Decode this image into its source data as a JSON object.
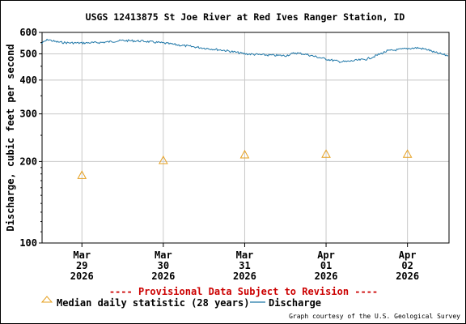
{
  "chart_data": {
    "type": "line",
    "title": "USGS 12413875 St Joe River at Red Ives Ranger Station, ID",
    "ylabel": "Discharge, cubic feet per second",
    "y_scale": "log",
    "ylim": [
      100,
      600
    ],
    "y_ticks": [
      100,
      200,
      300,
      400,
      500,
      600
    ],
    "x_ticks": [
      {
        "date": "2026-03-29",
        "label": [
          "Mar",
          "29",
          "2026"
        ]
      },
      {
        "date": "2026-03-30",
        "label": [
          "Mar",
          "30",
          "2026"
        ]
      },
      {
        "date": "2026-03-31",
        "label": [
          "Mar",
          "31",
          "2026"
        ]
      },
      {
        "date": "2026-04-01",
        "label": [
          "Apr",
          "01",
          "2026"
        ]
      },
      {
        "date": "2026-04-02",
        "label": [
          "Apr",
          "02",
          "2026"
        ]
      }
    ],
    "series": [
      {
        "name": "Discharge",
        "color": "#1f77a8",
        "points": [
          {
            "t": "2026-03-28T12:00",
            "y": 545
          },
          {
            "t": "2026-03-28T14:00",
            "y": 565
          },
          {
            "t": "2026-03-28T16:00",
            "y": 555
          },
          {
            "t": "2026-03-28T18:00",
            "y": 551
          },
          {
            "t": "2026-03-28T20:00",
            "y": 549
          },
          {
            "t": "2026-03-29T00:00",
            "y": 548
          },
          {
            "t": "2026-03-29T06:00",
            "y": 551
          },
          {
            "t": "2026-03-29T12:00",
            "y": 560
          },
          {
            "t": "2026-03-29T18:00",
            "y": 557
          },
          {
            "t": "2026-03-30T00:00",
            "y": 548
          },
          {
            "t": "2026-03-30T06:00",
            "y": 536
          },
          {
            "t": "2026-03-30T12:00",
            "y": 525
          },
          {
            "t": "2026-03-30T18:00",
            "y": 515
          },
          {
            "t": "2026-03-31T00:00",
            "y": 500
          },
          {
            "t": "2026-03-31T06:00",
            "y": 495
          },
          {
            "t": "2026-03-31T12:00",
            "y": 492
          },
          {
            "t": "2026-03-31T15:00",
            "y": 504
          },
          {
            "t": "2026-03-31T18:00",
            "y": 498
          },
          {
            "t": "2026-04-01T00:00",
            "y": 478
          },
          {
            "t": "2026-04-01T04:00",
            "y": 468
          },
          {
            "t": "2026-04-01T06:00",
            "y": 468
          },
          {
            "t": "2026-04-01T12:00",
            "y": 478
          },
          {
            "t": "2026-04-01T14:00",
            "y": 488
          },
          {
            "t": "2026-04-01T18:00",
            "y": 512
          },
          {
            "t": "2026-04-02T00:00",
            "y": 523
          },
          {
            "t": "2026-04-02T03:00",
            "y": 526
          },
          {
            "t": "2026-04-02T06:00",
            "y": 518
          },
          {
            "t": "2026-04-02T08:00",
            "y": 506
          },
          {
            "t": "2026-04-02T12:00",
            "y": 492
          }
        ]
      },
      {
        "name": "Median daily statistic (28 years)",
        "color": "#e6a020",
        "marker": "triangle",
        "points": [
          {
            "t": "2026-03-29T00:00",
            "y": 178
          },
          {
            "t": "2026-03-30T00:00",
            "y": 202
          },
          {
            "t": "2026-03-31T00:00",
            "y": 212
          },
          {
            "t": "2026-04-01T00:00",
            "y": 213
          },
          {
            "t": "2026-04-02T00:00",
            "y": 213
          }
        ]
      }
    ],
    "grid": true,
    "legend": "bottom"
  },
  "notice": "---- Provisional Data Subject to Revision ----",
  "credit": "Graph courtesy of the U.S. Geological Survey"
}
